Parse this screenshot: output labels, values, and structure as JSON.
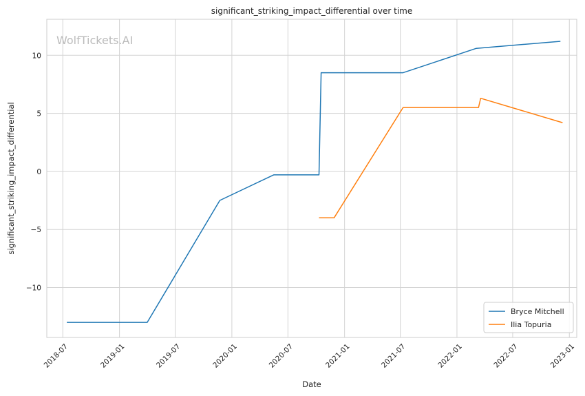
{
  "chart_data": {
    "type": "line",
    "title": "significant_striking_impact_differential over time",
    "xlabel": "Date",
    "ylabel": "significant_striking_impact_differential",
    "watermark": "WolfTickets.AI",
    "x_ticks": [
      "2018-07",
      "2019-01",
      "2019-07",
      "2020-01",
      "2020-07",
      "2021-01",
      "2021-07",
      "2022-01",
      "2022-07",
      "2023-01"
    ],
    "y_ticks": [
      -10,
      -5,
      0,
      5,
      10
    ],
    "xlim": [
      "2018-05-10",
      "2023-01-25"
    ],
    "ylim": [
      -14.3,
      13.1
    ],
    "grid": true,
    "legend_position": "bottom-right",
    "series": [
      {
        "name": "Bryce Mitchell",
        "color": "#1f77b4",
        "points": [
          {
            "x": "2018-07-14",
            "y": -13.0
          },
          {
            "x": "2019-04-01",
            "y": -13.0
          },
          {
            "x": "2019-11-23",
            "y": -2.5
          },
          {
            "x": "2020-05-16",
            "y": -0.3
          },
          {
            "x": "2020-10-10",
            "y": -0.3
          },
          {
            "x": "2020-10-17",
            "y": 8.5
          },
          {
            "x": "2021-07-10",
            "y": 8.5
          },
          {
            "x": "2022-03-05",
            "y": 10.6
          },
          {
            "x": "2022-12-03",
            "y": 11.2
          }
        ]
      },
      {
        "name": "Ilia Topuria",
        "color": "#ff7f0e",
        "points": [
          {
            "x": "2020-10-10",
            "y": -4.0
          },
          {
            "x": "2020-11-28",
            "y": -4.0
          },
          {
            "x": "2021-07-10",
            "y": 5.5
          },
          {
            "x": "2022-03-12",
            "y": 5.5
          },
          {
            "x": "2022-03-19",
            "y": 6.3
          },
          {
            "x": "2022-12-10",
            "y": 4.2
          }
        ]
      }
    ]
  }
}
